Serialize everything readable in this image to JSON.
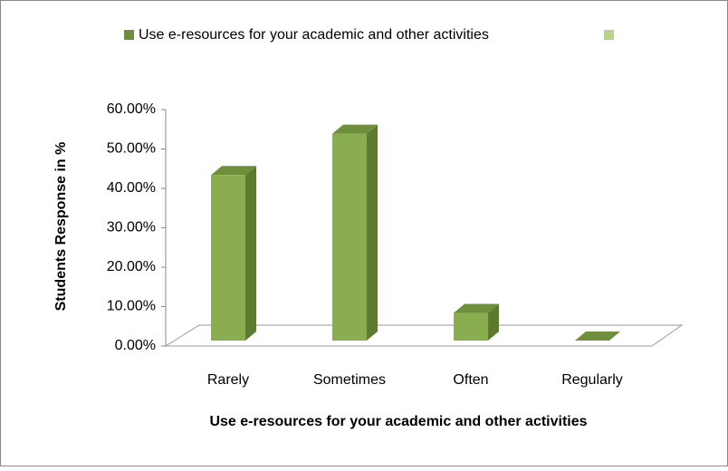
{
  "chart_data": {
    "type": "bar3d",
    "series": [
      {
        "name": "Use e-resources for your academic and other activities",
        "color": "#8aad4f",
        "values": [
          42,
          52.5,
          7,
          0
        ]
      }
    ],
    "categories": [
      "Rarely",
      "Sometimes",
      "Often",
      "Regularly"
    ],
    "xlabel": "Use e-resources for your academic and other activities",
    "ylabel": "Students Response in %",
    "ylim": [
      0,
      60
    ],
    "yticks": [
      {
        "value": 0,
        "label": "0.00%"
      },
      {
        "value": 10,
        "label": "10.00%"
      },
      {
        "value": 20,
        "label": "20.00%"
      },
      {
        "value": 30,
        "label": "30.00%"
      },
      {
        "value": 40,
        "label": "40.00%"
      },
      {
        "value": 50,
        "label": "50.00%"
      },
      {
        "value": 60,
        "label": "60.00%"
      }
    ],
    "legend": "top"
  }
}
